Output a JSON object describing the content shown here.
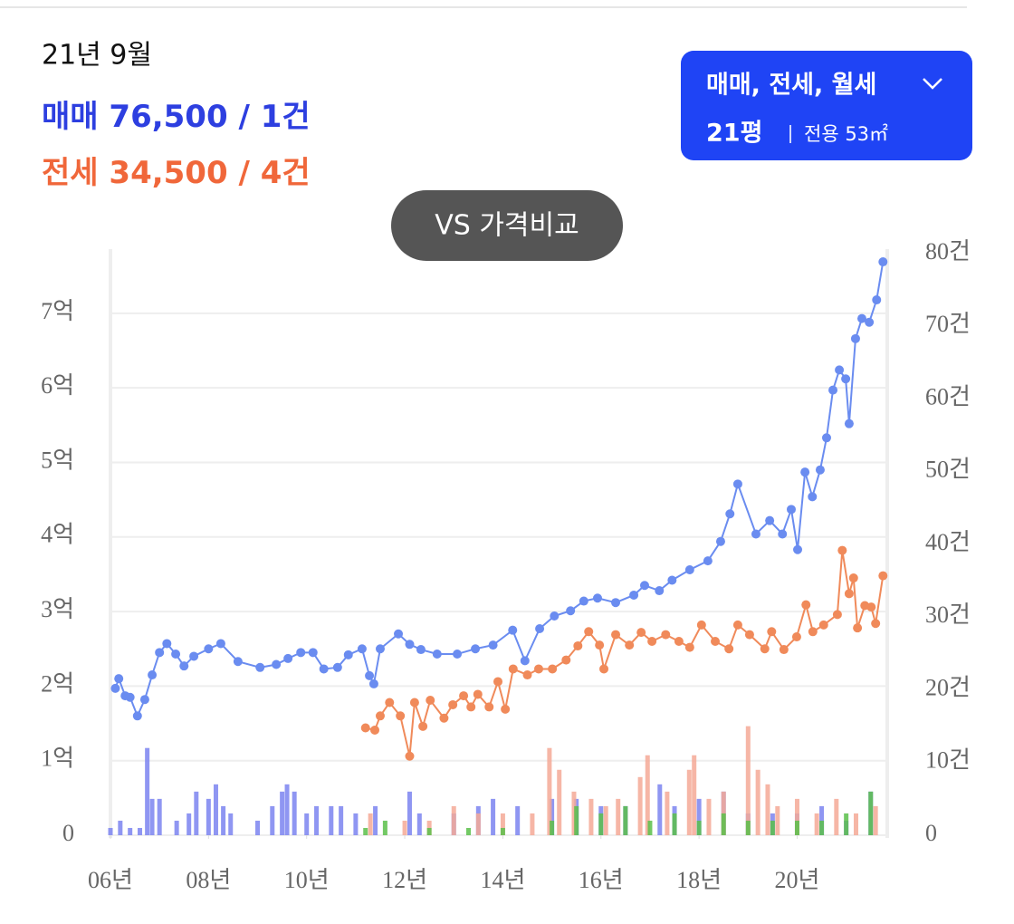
{
  "header": {
    "date": "21년 9월",
    "sale_summary": "76,500 / 1건",
    "jeonse_summary": "34,500 / 4건"
  },
  "filter": {
    "types": "매매, 전세, 월세",
    "size": "21평",
    "area": "전용 53㎡"
  },
  "compare_button": "VS 가격비교",
  "chart_data": {
    "type": "line",
    "xlim": [
      2006,
      2021.8
    ],
    "xticks": [
      {
        "value": 2006,
        "label": "06년"
      },
      {
        "value": 2008,
        "label": "08년"
      },
      {
        "value": 2010,
        "label": "10년"
      },
      {
        "value": 2012,
        "label": "12년"
      },
      {
        "value": 2014,
        "label": "14년"
      },
      {
        "value": 2016,
        "label": "16년"
      },
      {
        "value": 2018,
        "label": "18년"
      },
      {
        "value": 2020,
        "label": "20년"
      }
    ],
    "ylim": [
      0,
      7.8
    ],
    "yticks": [
      0,
      {
        "value": 1,
        "label": "1억"
      },
      {
        "value": 2,
        "label": "2억"
      },
      {
        "value": 3,
        "label": "3억"
      },
      {
        "value": 4,
        "label": "4억"
      },
      {
        "value": 5,
        "label": "5억"
      },
      {
        "value": 6,
        "label": "6억"
      },
      {
        "value": 7,
        "label": "7억"
      }
    ],
    "y2lim": [
      0,
      80
    ],
    "y2ticks": [
      0,
      {
        "value": 10,
        "label": "10건"
      },
      {
        "value": 20,
        "label": "20건"
      },
      {
        "value": 30,
        "label": "30건"
      },
      {
        "value": 40,
        "label": "40건"
      },
      {
        "value": 50,
        "label": "50건"
      },
      {
        "value": 60,
        "label": "60건"
      },
      {
        "value": 70,
        "label": "70건"
      },
      {
        "value": 80,
        "label": "80건"
      }
    ],
    "grid": true,
    "series": [
      {
        "name": "매매",
        "color": "#6a8cf0",
        "type": "line",
        "x": [
          2006.1,
          2006.17,
          2006.3,
          2006.4,
          2006.55,
          2006.7,
          2006.85,
          2007.0,
          2007.15,
          2007.33,
          2007.5,
          2007.7,
          2008.0,
          2008.25,
          2008.6,
          2009.05,
          2009.38,
          2009.62,
          2009.88,
          2010.13,
          2010.35,
          2010.63,
          2010.85,
          2011.13,
          2011.28,
          2011.37,
          2011.5,
          2011.87,
          2012.1,
          2012.33,
          2012.66,
          2013.07,
          2013.44,
          2013.8,
          2014.2,
          2014.45,
          2014.75,
          2015.05,
          2015.38,
          2015.65,
          2015.93,
          2016.3,
          2016.67,
          2016.89,
          2017.19,
          2017.45,
          2017.81,
          2018.18,
          2018.44,
          2018.63,
          2018.79,
          2019.16,
          2019.44,
          2019.7,
          2019.88,
          2020.01,
          2020.16,
          2020.31,
          2020.47,
          2020.6,
          2020.73,
          2020.86,
          2020.99,
          2021.06,
          2021.19,
          2021.32,
          2021.47,
          2021.62,
          2021.75
        ],
        "values": [
          1.97,
          2.1,
          1.87,
          1.85,
          1.6,
          1.82,
          2.15,
          2.45,
          2.57,
          2.43,
          2.27,
          2.4,
          2.5,
          2.57,
          2.33,
          2.25,
          2.29,
          2.37,
          2.45,
          2.45,
          2.23,
          2.25,
          2.42,
          2.5,
          2.14,
          2.03,
          2.5,
          2.7,
          2.56,
          2.49,
          2.43,
          2.43,
          2.5,
          2.55,
          2.75,
          2.34,
          2.77,
          2.94,
          3.01,
          3.14,
          3.18,
          3.12,
          3.22,
          3.35,
          3.28,
          3.42,
          3.56,
          3.68,
          3.94,
          4.31,
          4.71,
          4.04,
          4.22,
          4.04,
          4.37,
          3.83,
          4.87,
          4.54,
          4.9,
          5.33,
          5.97,
          6.24,
          6.12,
          5.52,
          6.66,
          6.93,
          6.88,
          7.18,
          7.69
        ]
      },
      {
        "name": "전세",
        "color": "#f08a5a",
        "type": "line",
        "x": [
          2011.2,
          2011.39,
          2011.5,
          2011.69,
          2011.91,
          2012.1,
          2012.2,
          2012.37,
          2012.52,
          2012.8,
          2012.98,
          2013.2,
          2013.35,
          2013.49,
          2013.72,
          2013.9,
          2014.05,
          2014.21,
          2014.5,
          2014.73,
          2015.01,
          2015.29,
          2015.53,
          2015.75,
          2015.97,
          2016.06,
          2016.3,
          2016.58,
          2016.82,
          2017.04,
          2017.32,
          2017.59,
          2017.81,
          2018.05,
          2018.33,
          2018.61,
          2018.79,
          2019.03,
          2019.34,
          2019.48,
          2019.73,
          2019.99,
          2020.18,
          2020.32,
          2020.54,
          2020.82,
          2020.92,
          2021.06,
          2021.15,
          2021.23,
          2021.38,
          2021.51,
          2021.6,
          2021.75
        ],
        "values": [
          1.44,
          1.41,
          1.6,
          1.78,
          1.6,
          1.06,
          1.78,
          1.46,
          1.81,
          1.57,
          1.75,
          1.87,
          1.72,
          1.89,
          1.72,
          2.06,
          1.69,
          2.23,
          2.15,
          2.23,
          2.23,
          2.35,
          2.54,
          2.73,
          2.55,
          2.23,
          2.69,
          2.55,
          2.72,
          2.6,
          2.69,
          2.6,
          2.52,
          2.82,
          2.6,
          2.5,
          2.82,
          2.69,
          2.5,
          2.73,
          2.49,
          2.66,
          3.09,
          2.73,
          2.82,
          2.96,
          3.82,
          3.24,
          3.45,
          2.78,
          3.08,
          3.06,
          2.84,
          3.48
        ]
      },
      {
        "color": "#7b84f0",
        "type": "bar",
        "axis": "y2",
        "x": [
          2006.0,
          2006.2,
          2006.4,
          2006.6,
          2006.75,
          2006.85,
          2007.0,
          2007.35,
          2007.6,
          2007.75,
          2008.0,
          2008.15,
          2008.3,
          2008.45,
          2009.0,
          2009.3,
          2009.5,
          2009.6,
          2009.75,
          2010.0,
          2010.2,
          2010.5,
          2010.7,
          2011.0,
          2011.4,
          2012.1,
          2012.3,
          2013.0,
          2013.5,
          2013.8,
          2014.3,
          2015.0,
          2015.5,
          2016.0,
          2016.5,
          2017.2,
          2017.5,
          2018.0,
          2018.5,
          2019.0,
          2019.5,
          2020.0,
          2020.5,
          2021.0,
          2021.5
        ],
        "values": [
          1,
          2,
          1,
          1,
          12,
          5,
          5,
          2,
          3,
          6,
          5,
          7,
          4,
          3,
          2,
          4,
          6,
          7,
          6,
          3,
          4,
          4,
          4,
          3,
          4,
          6,
          3,
          3,
          4,
          5,
          4,
          5,
          5,
          4,
          4,
          7,
          4,
          5,
          6,
          3,
          3,
          3,
          4,
          2,
          6
        ]
      },
      {
        "color": "#f4a996",
        "type": "bar",
        "axis": "y2",
        "x": [
          2011.3,
          2012.0,
          2012.5,
          2013.0,
          2013.5,
          2014.0,
          2014.6,
          2014.95,
          2015.15,
          2015.45,
          2015.8,
          2016.1,
          2016.35,
          2016.8,
          2016.95,
          2017.35,
          2017.8,
          2017.9,
          2018.2,
          2018.5,
          2019.0,
          2019.2,
          2019.4,
          2019.6,
          2020.0,
          2020.4,
          2020.8,
          2021.2,
          2021.6
        ],
        "values": [
          3,
          2,
          2,
          4,
          3,
          3,
          3,
          12,
          9,
          6,
          5,
          4,
          5,
          8,
          11,
          6,
          9,
          11,
          5,
          6,
          15,
          9,
          7,
          4,
          5,
          3,
          5,
          3,
          4
        ]
      },
      {
        "color": "#5bc04a",
        "type": "bar",
        "axis": "y2",
        "x": [
          2011.2,
          2011.6,
          2012.5,
          2013.3,
          2014.0,
          2015.0,
          2015.5,
          2016.0,
          2016.5,
          2017.0,
          2017.5,
          2018.0,
          2018.5,
          2019.0,
          2019.5,
          2020.0,
          2020.5,
          2021.0,
          2021.5
        ],
        "values": [
          1,
          2,
          1,
          1,
          1,
          2,
          4,
          3,
          4,
          2,
          3,
          2,
          3,
          2,
          2,
          2,
          2,
          3,
          6
        ]
      }
    ]
  }
}
